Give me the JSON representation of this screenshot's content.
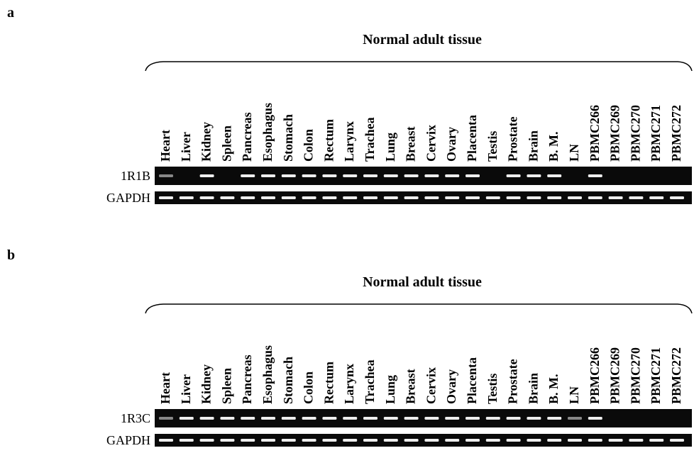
{
  "figure": {
    "panels": [
      {
        "label": "a",
        "title": "Normal adult tissue",
        "lanes": [
          "Heart",
          "Liver",
          "Kidney",
          "Spleen",
          "Pancreas",
          "Esophagus",
          "Stomach",
          "Colon",
          "Rectum",
          "Larynx",
          "Trachea",
          "Lung",
          "Breast",
          "Cervix",
          "Ovary",
          "Placenta",
          "Testis",
          "Prostate",
          "Brain",
          "B. M.",
          "LN",
          "PBMC266",
          "PBMC269",
          "PBMC270",
          "PBMC271",
          "PBMC272"
        ],
        "rows": [
          "1R1B",
          "GAPDH"
        ]
      },
      {
        "label": "b",
        "title": "Normal adult tissue",
        "lanes": [
          "Heart",
          "Liver",
          "Kidney",
          "Spleen",
          "Pancreas",
          "Esophagus",
          "Stomach",
          "Colon",
          "Rectum",
          "Larynx",
          "Trachea",
          "Lung",
          "Breast",
          "Cervix",
          "Ovary",
          "Placenta",
          "Testis",
          "Prostate",
          "Brain",
          "B. M.",
          "LN",
          "PBMC266",
          "PBMC269",
          "PBMC270",
          "PBMC271",
          "PBMC272"
        ],
        "rows": [
          "1R3C",
          "GAPDH"
        ]
      }
    ]
  }
}
